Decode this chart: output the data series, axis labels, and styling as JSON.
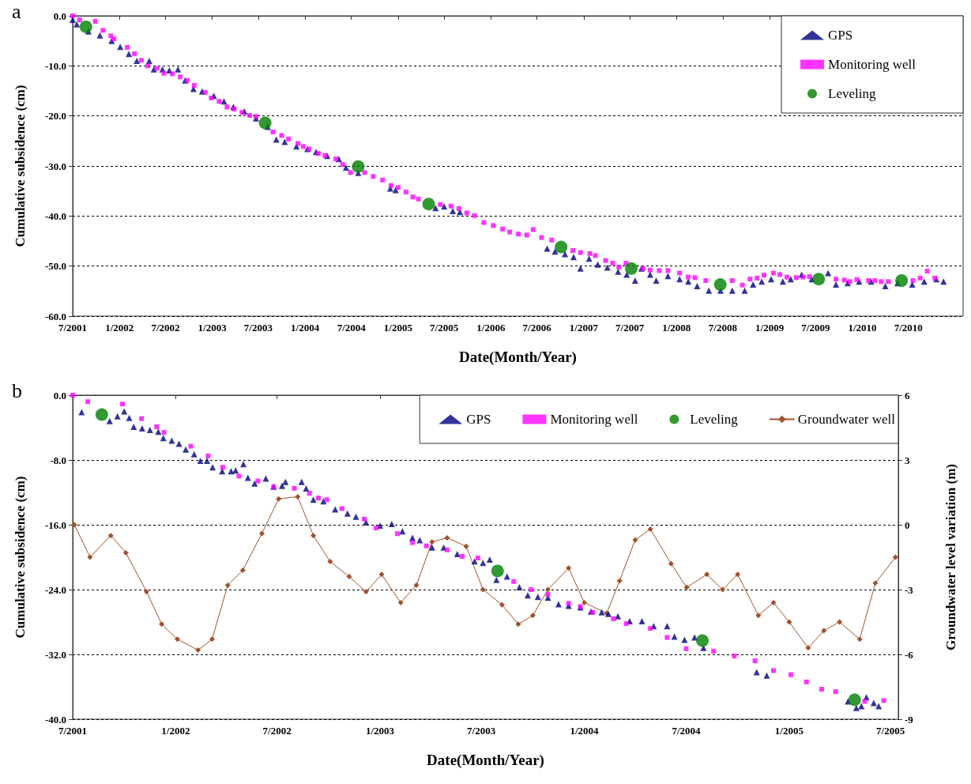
{
  "chart_data": [
    {
      "type": "scatter",
      "title": "a",
      "xlabel": "Date(Month/Year)",
      "ylabel": "Cumulative subsidence (cm)",
      "xlim": [
        "2001-07-01",
        "2011-02-01"
      ],
      "xticks": [
        {
          "value": "2001-07",
          "label": "7/2001"
        },
        {
          "value": "2002-01",
          "label": "1/2002"
        },
        {
          "value": "2002-07",
          "label": "7/2002"
        },
        {
          "value": "2003-01",
          "label": "1/2003"
        },
        {
          "value": "2003-07",
          "label": "7/2003"
        },
        {
          "value": "2004-01",
          "label": "1/2004"
        },
        {
          "value": "2004-07",
          "label": "7/2004"
        },
        {
          "value": "2005-01",
          "label": "1/2005"
        },
        {
          "value": "2005-07",
          "label": "7/2005"
        },
        {
          "value": "2006-01",
          "label": "1/2006"
        },
        {
          "value": "2006-07",
          "label": "7/2006"
        },
        {
          "value": "2007-01",
          "label": "1/2007"
        },
        {
          "value": "2007-07",
          "label": "7/2007"
        },
        {
          "value": "2008-01",
          "label": "1/2008"
        },
        {
          "value": "2008-07",
          "label": "7/2008"
        },
        {
          "value": "2009-01",
          "label": "1/2009"
        },
        {
          "value": "2009-07",
          "label": "7/2009"
        },
        {
          "value": "2010-01",
          "label": "1/2010"
        },
        {
          "value": "2010-07",
          "label": "7/2010"
        },
        {
          "value": "2011-01",
          "label": null
        }
      ],
      "ylim": [
        -60,
        0
      ],
      "yticks": [
        {
          "value": -60,
          "label": "-60.0"
        },
        {
          "value": -50,
          "label": "-50.0"
        },
        {
          "value": -40,
          "label": "-40.0"
        },
        {
          "value": -30,
          "label": "-30.0"
        },
        {
          "value": -20,
          "label": "-20.0"
        },
        {
          "value": -10,
          "label": "-10.0"
        },
        {
          "value": 0,
          "label": "0.0"
        }
      ],
      "grid": "y",
      "legend": "top right",
      "series": [
        {
          "name": "GPS",
          "marker": "triangle",
          "color": "#000080",
          "x": [
            "2001-07-01",
            "2001-07-17",
            "2001-09-01",
            "2001-10-16",
            "2001-12-01",
            "2002-01-04",
            "2002-02-07",
            "2002-03-10",
            "2002-04-28",
            "2002-05-16",
            "2002-06-19",
            "2002-07-16",
            "2002-08-19",
            "2002-09-16",
            "2002-10-19",
            "2002-11-22",
            "2003-01-07",
            "2003-02-16",
            "2003-03-25",
            "2003-05-07",
            "2003-06-22",
            "2003-08-07",
            "2003-09-10",
            "2003-10-13",
            "2003-11-28",
            "2004-01-10",
            "2004-02-13",
            "2004-03-28",
            "2004-05-13",
            "2004-06-10",
            "2004-07-28",
            "2004-12-01",
            "2004-12-22",
            "2005-05-28",
            "2005-07-01",
            "2005-08-04",
            "2005-09-01",
            "2006-08-10",
            "2006-09-10",
            "2006-10-19",
            "2006-11-22",
            "2006-12-19",
            "2007-01-22",
            "2007-02-25",
            "2007-04-04",
            "2007-05-16",
            "2007-06-19",
            "2007-07-22",
            "2007-08-16",
            "2007-09-19",
            "2007-10-13",
            "2007-11-28",
            "2008-01-13",
            "2008-02-16",
            "2008-03-22",
            "2008-05-07",
            "2008-06-22",
            "2008-08-07",
            "2008-09-25",
            "2008-10-28",
            "2008-12-01",
            "2009-01-07",
            "2009-02-22",
            "2009-03-25",
            "2009-05-07",
            "2009-06-16",
            "2009-08-19",
            "2009-09-19",
            "2009-11-04",
            "2009-12-19",
            "2010-02-04",
            "2010-04-01",
            "2010-05-19",
            "2010-07-16",
            "2010-09-01",
            "2010-10-19",
            "2010-11-16"
          ],
          "values": [
            -0.8,
            -1.7,
            -3.1,
            -3.9,
            -5.0,
            -6.2,
            -7.6,
            -9.0,
            -9.0,
            -10.7,
            -10.7,
            -10.9,
            -10.7,
            -12.9,
            -14.6,
            -15.1,
            -16.0,
            -17.1,
            -18.2,
            -19.1,
            -20.5,
            -22.2,
            -24.7,
            -25.2,
            -26.1,
            -26.6,
            -27.2,
            -28.0,
            -28.6,
            -30.3,
            -31.4,
            -34.5,
            -34.8,
            -38.4,
            -38.1,
            -39.0,
            -39.2,
            -46.5,
            -47.1,
            -47.6,
            -48.2,
            -50.5,
            -48.5,
            -49.7,
            -50.3,
            -51.1,
            -51.7,
            -52.9,
            -50.5,
            -51.7,
            -52.9,
            -52.0,
            -52.6,
            -53.1,
            -54.0,
            -54.9,
            -54.9,
            -54.9,
            -54.9,
            -53.7,
            -53.1,
            -52.6,
            -53.1,
            -52.6,
            -51.7,
            -52.6,
            -51.4,
            -53.7,
            -53.4,
            -53.1,
            -53.1,
            -54.0,
            -53.4,
            -53.7,
            -53.1,
            -52.6,
            -53.1
          ]
        },
        {
          "name": "Monitoring well",
          "marker": "square",
          "color": "#ff00ff",
          "x": [
            "2001-07-01",
            "2001-07-28",
            "2001-09-28",
            "2001-10-28",
            "2001-11-28",
            "2001-12-10",
            "2002-02-01",
            "2002-03-01",
            "2002-03-28",
            "2002-04-22",
            "2002-05-28",
            "2002-06-25",
            "2002-07-28",
            "2002-08-28",
            "2002-09-25",
            "2002-10-22",
            "2002-12-04",
            "2002-12-28",
            "2003-01-28",
            "2003-02-28",
            "2003-03-28",
            "2003-04-28",
            "2003-05-28",
            "2003-06-22",
            "2003-08-28",
            "2003-10-01",
            "2003-10-28",
            "2003-12-04",
            "2003-12-25",
            "2004-01-16",
            "2004-02-22",
            "2004-03-19",
            "2004-05-01",
            "2004-05-28",
            "2004-06-28",
            "2004-08-22",
            "2004-09-25",
            "2004-11-01",
            "2004-12-04",
            "2005-01-01",
            "2005-02-01",
            "2005-02-28",
            "2005-03-22",
            "2005-06-16",
            "2005-07-28",
            "2005-08-28",
            "2005-09-28",
            "2005-10-28",
            "2005-12-04",
            "2006-01-10",
            "2006-02-16",
            "2006-03-16",
            "2006-04-19",
            "2006-05-22",
            "2006-06-16",
            "2006-07-19",
            "2006-08-28",
            "2006-11-19",
            "2006-12-19",
            "2007-01-25",
            "2007-02-16",
            "2007-03-28",
            "2007-04-25",
            "2007-05-19",
            "2007-06-16",
            "2007-08-22",
            "2007-09-19",
            "2007-10-25",
            "2007-11-28",
            "2008-01-13",
            "2008-02-16",
            "2008-03-13",
            "2008-04-25",
            "2008-08-07",
            "2008-09-16",
            "2008-10-16",
            "2008-11-13",
            "2008-12-10",
            "2009-01-16",
            "2009-02-10",
            "2009-03-10",
            "2009-04-16",
            "2009-05-13",
            "2009-06-07",
            "2009-09-19",
            "2009-10-22",
            "2009-11-13",
            "2009-12-10",
            "2010-01-25",
            "2010-02-19",
            "2010-03-16",
            "2010-04-13",
            "2010-07-19",
            "2010-08-16",
            "2010-09-13",
            "2010-10-13"
          ],
          "values": [
            0.0,
            -0.8,
            -1.1,
            -2.9,
            -4.0,
            -4.6,
            -6.3,
            -7.6,
            -8.9,
            -10.0,
            -10.5,
            -11.5,
            -11.6,
            -12.2,
            -12.9,
            -13.9,
            -15.3,
            -16.4,
            -17.1,
            -18.2,
            -18.6,
            -19.3,
            -19.9,
            -20.1,
            -23.2,
            -23.9,
            -24.6,
            -25.5,
            -26.1,
            -26.6,
            -27.5,
            -27.9,
            -28.6,
            -29.7,
            -31.3,
            -31.3,
            -32.1,
            -32.8,
            -33.9,
            -34.3,
            -35.2,
            -36.2,
            -36.6,
            -37.7,
            -38.0,
            -38.5,
            -39.4,
            -39.9,
            -41.3,
            -41.9,
            -42.6,
            -43.2,
            -43.6,
            -43.8,
            -42.7,
            -44.3,
            -44.8,
            -46.9,
            -47.3,
            -47.5,
            -47.9,
            -48.9,
            -49.4,
            -50.2,
            -49.4,
            -50.5,
            -50.8,
            -50.9,
            -50.9,
            -51.4,
            -52.2,
            -52.3,
            -52.9,
            -52.9,
            -53.8,
            -52.6,
            -52.4,
            -51.8,
            -51.4,
            -51.7,
            -52.2,
            -52.3,
            -52.2,
            -52.1,
            -52.6,
            -52.8,
            -53.1,
            -52.7,
            -52.9,
            -52.9,
            -53.1,
            -53.1,
            -52.9,
            -52.4,
            -51.0,
            -52.4
          ]
        },
        {
          "name": "Leveling",
          "marker": "circle",
          "color": "#008000",
          "x": [
            "2001-08-22",
            "2003-07-28",
            "2004-07-28",
            "2005-05-01",
            "2006-10-04",
            "2007-07-07",
            "2008-06-21",
            "2009-07-13",
            "2010-06-04"
          ],
          "values": [
            -2.2,
            -21.4,
            -30.1,
            -37.6,
            -46.2,
            -50.5,
            -53.7,
            -52.6,
            -52.9
          ]
        }
      ]
    },
    {
      "type": "scatter",
      "title": "b",
      "xlabel": "Date(Month/Year)",
      "ylabel": "Cumulative subsidence (cm)",
      "y2label": "Groundwater level variation (m)",
      "xlim": [
        "2001-07-01",
        "2005-07-15"
      ],
      "xticks": [
        {
          "value": "2001-07",
          "label": "7/2001"
        },
        {
          "value": "2002-01",
          "label": "1/2002"
        },
        {
          "value": "2002-07",
          "label": "7/2002"
        },
        {
          "value": "2003-01",
          "label": "1/2003"
        },
        {
          "value": "2003-07",
          "label": "7/2003"
        },
        {
          "value": "2004-01",
          "label": "1/2004"
        },
        {
          "value": "2004-07",
          "label": "7/2004"
        },
        {
          "value": "2005-01",
          "label": "1/2005"
        },
        {
          "value": "2005-07",
          "label": "7/2005"
        }
      ],
      "ylim": [
        -40,
        0
      ],
      "yticks": [
        {
          "value": -40,
          "label": "-40.0"
        },
        {
          "value": -32,
          "label": "-32.0"
        },
        {
          "value": -24,
          "label": "-24.0"
        },
        {
          "value": -16,
          "label": "-16.0"
        },
        {
          "value": -8,
          "label": "-8.0"
        },
        {
          "value": 0,
          "label": "0.0"
        }
      ],
      "y2lim": [
        -9,
        6
      ],
      "y2ticks": [
        -9,
        -6,
        -3,
        0,
        3,
        6
      ],
      "grid": "y",
      "legend": "top right",
      "series": [
        {
          "name": "GPS",
          "marker": "triangle",
          "color": "#000080",
          "x": [
            "2001-07-17",
            "2001-09-05",
            "2001-09-19",
            "2001-10-01",
            "2001-10-10",
            "2001-10-18",
            "2001-11-02",
            "2001-11-16",
            "2001-12-01",
            "2001-12-10",
            "2001-12-25",
            "2002-01-07",
            "2002-01-19",
            "2002-02-03",
            "2002-02-14",
            "2002-02-26",
            "2002-03-08",
            "2002-03-25",
            "2002-04-10",
            "2002-04-18",
            "2002-05-02",
            "2002-05-10",
            "2002-05-22",
            "2002-06-11",
            "2002-06-25",
            "2002-07-10",
            "2002-07-16",
            "2002-08-14",
            "2002-08-22",
            "2002-09-04",
            "2002-09-22",
            "2002-10-13",
            "2002-11-04",
            "2002-11-19",
            "2002-12-07",
            "2003-01-01",
            "2003-01-22",
            "2003-02-10",
            "2003-02-28",
            "2003-03-13",
            "2003-04-04",
            "2003-04-25",
            "2003-05-19",
            "2003-06-19",
            "2003-07-04",
            "2003-07-16",
            "2003-07-28",
            "2003-08-16",
            "2003-09-07",
            "2003-09-22",
            "2003-10-10",
            "2003-10-28",
            "2003-11-16",
            "2003-12-04",
            "2003-12-25",
            "2004-01-13",
            "2004-02-01",
            "2004-02-13",
            "2004-03-01",
            "2004-03-22",
            "2004-04-13",
            "2004-05-04",
            "2004-05-28",
            "2004-06-10",
            "2004-06-28",
            "2004-07-16",
            "2004-08-01",
            "2004-11-04",
            "2004-11-22",
            "2005-04-16",
            "2005-05-01",
            "2005-05-10",
            "2005-05-19",
            "2005-06-01",
            "2005-06-10"
          ],
          "values": [
            -2.1,
            -3.2,
            -2.6,
            -2.0,
            -2.8,
            -3.9,
            -4.1,
            -4.3,
            -4.5,
            -5.3,
            -5.6,
            -6.0,
            -6.7,
            -7.3,
            -8.1,
            -8.1,
            -8.9,
            -9.4,
            -9.4,
            -9.3,
            -8.5,
            -10.2,
            -10.9,
            -10.3,
            -11.3,
            -11.2,
            -10.7,
            -10.7,
            -11.5,
            -12.9,
            -13.1,
            -14.1,
            -14.6,
            -15.0,
            -15.7,
            -16.1,
            -15.9,
            -16.8,
            -17.6,
            -17.9,
            -18.8,
            -18.8,
            -19.6,
            -20.5,
            -20.7,
            -20.3,
            -22.8,
            -22.4,
            -23.7,
            -24.7,
            -24.9,
            -25.0,
            -25.8,
            -26.0,
            -26.2,
            -26.7,
            -26.8,
            -27.0,
            -27.3,
            -27.9,
            -27.9,
            -28.5,
            -28.5,
            -29.8,
            -30.2,
            -29.9,
            -31.2,
            -34.2,
            -34.6,
            -37.8,
            -38.6,
            -38.4,
            -37.3,
            -38.0,
            -38.4
          ]
        },
        {
          "name": "Monitoring well",
          "marker": "square",
          "color": "#ff00ff",
          "x": [
            "2001-07-01",
            "2001-07-28",
            "2001-09-28",
            "2001-11-01",
            "2001-11-28",
            "2001-12-11",
            "2002-01-28",
            "2002-02-28",
            "2002-03-26",
            "2002-04-24",
            "2002-05-28",
            "2002-06-25",
            "2002-08-01",
            "2002-08-28",
            "2002-09-13",
            "2002-09-28",
            "2002-10-25",
            "2002-12-04",
            "2002-12-25",
            "2003-02-01",
            "2003-02-28",
            "2003-03-25",
            "2003-05-01",
            "2003-05-28",
            "2003-06-25",
            "2003-08-28",
            "2003-09-28",
            "2003-10-28",
            "2003-12-04",
            "2003-12-25",
            "2004-01-16",
            "2004-02-22",
            "2004-03-16",
            "2004-04-28",
            "2004-05-28",
            "2004-07-01",
            "2004-08-19",
            "2004-09-25",
            "2004-11-01",
            "2004-12-04",
            "2005-01-04",
            "2005-02-01",
            "2005-02-28",
            "2005-03-25",
            "2005-05-16",
            "2005-06-19"
          ],
          "values": [
            0.0,
            -0.8,
            -1.1,
            -2.9,
            -3.9,
            -4.6,
            -6.3,
            -7.5,
            -8.9,
            -10.0,
            -10.6,
            -11.3,
            -11.5,
            -12.1,
            -12.7,
            -12.9,
            -14.0,
            -15.3,
            -16.4,
            -17.1,
            -18.2,
            -18.6,
            -19.1,
            -19.9,
            -20.1,
            -23.0,
            -24.0,
            -24.6,
            -25.7,
            -26.1,
            -26.8,
            -27.6,
            -28.2,
            -28.8,
            -29.9,
            -31.3,
            -31.6,
            -32.2,
            -32.8,
            -34.0,
            -34.5,
            -35.4,
            -36.3,
            -36.6,
            -37.8,
            -37.7
          ]
        },
        {
          "name": "Leveling",
          "marker": "circle",
          "color": "#008000",
          "x": [
            "2001-08-22",
            "2003-07-30",
            "2004-07-30",
            "2005-04-28"
          ],
          "values": [
            -2.4,
            -21.7,
            -30.3,
            -37.6
          ]
        },
        {
          "name": "Groundwater well",
          "type": "line",
          "marker": "diamond",
          "line_style": "solid",
          "axis": "y2",
          "color": "#a0522d",
          "x": [
            "2001-07-04",
            "2001-08-01",
            "2001-09-07",
            "2001-10-04",
            "2001-11-10",
            "2001-12-07",
            "2002-01-04",
            "2002-02-10",
            "2002-03-07",
            "2002-04-04",
            "2002-05-01",
            "2002-06-04",
            "2002-07-04",
            "2002-08-07",
            "2002-09-04",
            "2002-10-04",
            "2002-11-07",
            "2002-12-07",
            "2003-01-04",
            "2003-02-07",
            "2003-03-07",
            "2003-04-04",
            "2003-05-01",
            "2003-06-04",
            "2003-07-04",
            "2003-08-07",
            "2003-09-05",
            "2003-10-01",
            "2003-10-28",
            "2003-12-04",
            "2004-01-01",
            "2004-02-10",
            "2004-03-04",
            "2004-04-01",
            "2004-04-28",
            "2004-06-04",
            "2004-07-02",
            "2004-08-07",
            "2004-09-04",
            "2004-10-01",
            "2004-11-07",
            "2004-12-04",
            "2005-01-01",
            "2005-02-04",
            "2005-03-04",
            "2005-04-01",
            "2005-05-07",
            "2005-06-04",
            "2005-07-10"
          ],
          "values": [
            0.0,
            -1.5,
            -0.5,
            -1.3,
            -3.1,
            -4.6,
            -5.3,
            -5.8,
            -5.3,
            -2.8,
            -2.1,
            -0.4,
            1.2,
            1.3,
            -0.5,
            -1.7,
            -2.4,
            -3.1,
            -2.3,
            -3.6,
            -2.8,
            -0.8,
            -0.6,
            -1.0,
            -3.0,
            -3.7,
            -4.6,
            -4.2,
            -3.0,
            -2.0,
            -3.6,
            -4.1,
            -2.6,
            -0.7,
            -0.2,
            -1.8,
            -2.9,
            -2.3,
            -3.0,
            -2.3,
            -4.2,
            -3.6,
            -4.5,
            -5.7,
            -4.9,
            -4.5,
            -5.3,
            -2.7,
            -1.5
          ]
        }
      ]
    }
  ]
}
